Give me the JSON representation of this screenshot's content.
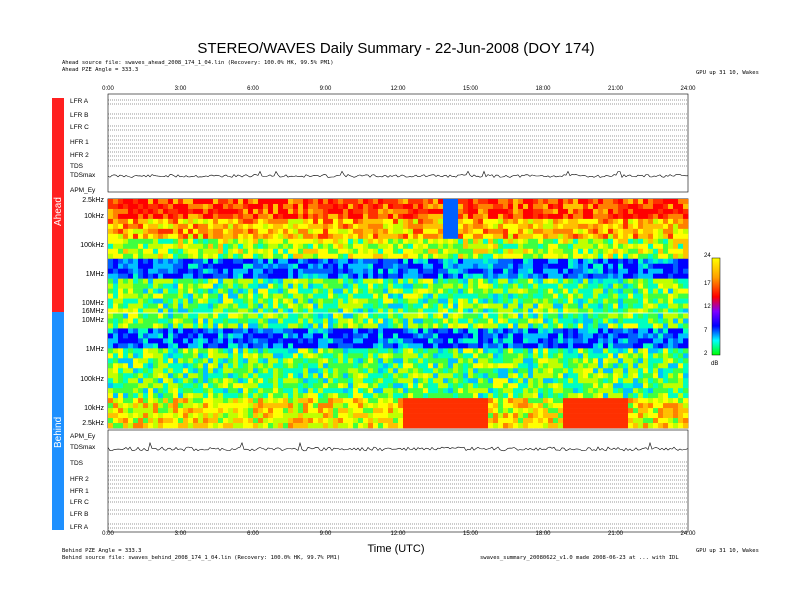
{
  "title": "STEREO/WAVES Daily Summary - 22-Jun-2008 (DOY 174)",
  "header_left": [
    "Ahead source file: swaves_ahead_2008_174_1_04.lin (Recovery: 100.0% HK, 99.5% PM1)",
    "Ahead PZE Angle = 333.3"
  ],
  "header_right": "GPU up 31 10, Wakes",
  "footer_left": [
    "Behind PZE Angle = 333.3",
    "Behind source file: swaves_behind_2008_174_1_04.lin (Recovery: 100.0% HK, 99.7% PM1)"
  ],
  "footer_right": [
    "GPU up 31 10, Wakes",
    "swaves_summary_20080622_v1.0 made 2008-06-23 at ... with IDL"
  ],
  "time_ticks": [
    "0:00",
    "3:00",
    "6:00",
    "9:00",
    "12:00",
    "15:00",
    "18:00",
    "21:00",
    "24:00"
  ],
  "xlabel": "Time (UTC)",
  "spacecraft": {
    "ahead": "Ahead",
    "behind": "Behind"
  },
  "colors": {
    "ahead": "#ff2020",
    "behind": "#1e90ff"
  },
  "ahead_panels": [
    "LFR A",
    "LFR B",
    "LFR C",
    "HFR 1",
    "HFR 2",
    "TDS",
    "TDSmax"
  ],
  "behind_panels": [
    "TDSmax",
    "TDS",
    "HFR 2",
    "HFR 1",
    "LFR C",
    "LFR B",
    "LFR A"
  ],
  "apm_label": "APM_Ey",
  "ahead_freq_labels": [
    "2.5kHz",
    "10kHz",
    "100kHz",
    "1MHz",
    "10MHz",
    "16MHz"
  ],
  "behind_freq_labels": [
    "10MHz",
    "1MHz",
    "100kHz",
    "10kHz",
    "2.5kHz"
  ],
  "colorbar": {
    "ticks": [
      "24",
      "17",
      "12",
      "7",
      "2"
    ],
    "unit": "dB"
  },
  "chart_data": {
    "type": "heatmap",
    "title": "STEREO/WAVES Daily Summary - 22-Jun-2008 (DOY 174)",
    "xlabel": "Time (UTC)",
    "ylabel": "",
    "x_range_hours": [
      0,
      24
    ],
    "x_ticks": [
      "0:00",
      "3:00",
      "6:00",
      "9:00",
      "12:00",
      "15:00",
      "18:00",
      "21:00",
      "24:00"
    ],
    "panels": [
      {
        "name": "Ahead",
        "y_ticks": [
          "2.5kHz",
          "10kHz",
          "100kHz",
          "1MHz",
          "10MHz",
          "16MHz"
        ],
        "y_scale": "log"
      },
      {
        "name": "Behind",
        "y_ticks": [
          "10MHz",
          "1MHz",
          "100kHz",
          "10kHz",
          "2.5kHz"
        ],
        "y_scale": "log"
      }
    ],
    "color_scale": {
      "min": 2,
      "max": 24,
      "ticks": [
        24,
        17,
        12,
        7,
        2
      ],
      "unit": "dB"
    }
  }
}
